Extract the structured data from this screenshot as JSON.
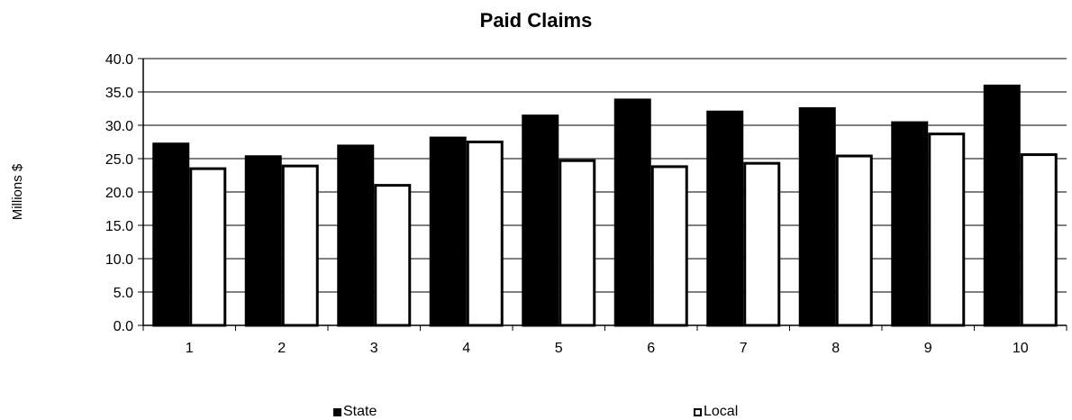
{
  "chart_data": {
    "type": "bar",
    "title": "Paid Claims",
    "xlabel": "",
    "ylabel": "Millions $",
    "ylim": [
      0,
      40
    ],
    "yticks": [
      "0.0",
      "5.0",
      "10.0",
      "15.0",
      "20.0",
      "25.0",
      "30.0",
      "35.0",
      "40.0"
    ],
    "categories": [
      "1",
      "2",
      "3",
      "4",
      "5",
      "6",
      "7",
      "8",
      "9",
      "10"
    ],
    "series": [
      {
        "name": "State",
        "color": "#000000",
        "values": [
          27.4,
          25.5,
          27.1,
          28.3,
          31.6,
          34.0,
          32.2,
          32.7,
          30.6,
          36.1
        ]
      },
      {
        "name": "Local",
        "color": "#ffffff",
        "values": [
          23.7,
          24.1,
          21.2,
          27.7,
          24.9,
          24.0,
          24.5,
          25.6,
          28.9,
          25.8
        ]
      }
    ],
    "grid": true,
    "legend_position": "bottom"
  }
}
